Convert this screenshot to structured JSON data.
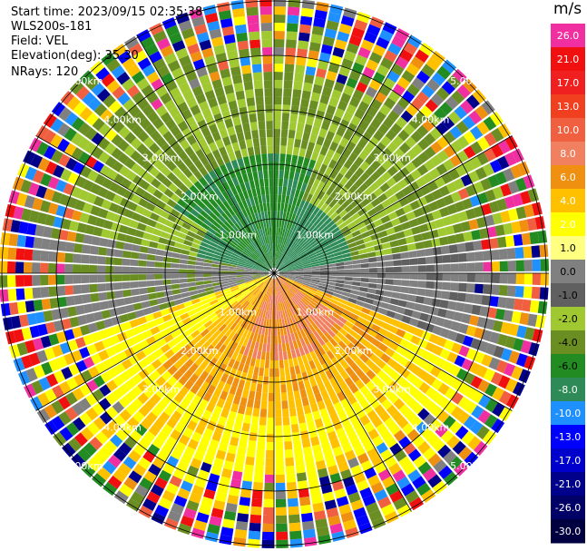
{
  "header": {
    "start_time": "Start time: 2023/09/15 02:35:38",
    "instrument": "WLS200s-181",
    "field": "Field: VEL",
    "elevation": "Elevation(deg): 35.30",
    "nrays": "NRays: 120"
  },
  "rings": [
    {
      "km": 1,
      "label": "1.00km"
    },
    {
      "km": 2,
      "label": "2.00km"
    },
    {
      "km": 3,
      "label": "3.00km"
    },
    {
      "km": 4,
      "label": "4.00km"
    },
    {
      "km": 5,
      "label": "5.00km"
    }
  ],
  "colorbar": {
    "unit": "m/s",
    "levels": [
      {
        "label": "26.0",
        "color": "#f030a0"
      },
      {
        "label": "21.0",
        "color": "#f01010"
      },
      {
        "label": "17.0",
        "color": "#f02020"
      },
      {
        "label": "13.0",
        "color": "#f04020"
      },
      {
        "label": "10.0",
        "color": "#f06040"
      },
      {
        "label": "8.0",
        "color": "#f08060"
      },
      {
        "label": "6.0",
        "color": "#f09010"
      },
      {
        "label": "4.0",
        "color": "#ffc000"
      },
      {
        "label": "2.0",
        "color": "#ffff00"
      },
      {
        "label": "1.0",
        "color": "#ffff80"
      },
      {
        "label": "0.0",
        "color": "#808080"
      },
      {
        "label": "-1.0",
        "color": "#606060"
      },
      {
        "label": "-2.0",
        "color": "#a0c830"
      },
      {
        "label": "-4.0",
        "color": "#6b8e23"
      },
      {
        "label": "-6.0",
        "color": "#228b22"
      },
      {
        "label": "-8.0",
        "color": "#2e8b57"
      },
      {
        "label": "-10.0",
        "color": "#1e90ff"
      },
      {
        "label": "-13.0",
        "color": "#0000ff"
      },
      {
        "label": "-17.0",
        "color": "#0000cd"
      },
      {
        "label": "-21.0",
        "color": "#00008b"
      },
      {
        "label": "-26.0",
        "color": "#000066"
      },
      {
        "label": "-30.0",
        "color": "#000040"
      }
    ]
  },
  "palette": {
    "bg": "#ffffff",
    "grid": "#000000",
    "noise": [
      "#f030a0",
      "#f01010",
      "#f06040",
      "#f09010",
      "#ffff00",
      "#808080",
      "#6b8e23",
      "#228b22",
      "#1e90ff",
      "#0000ff",
      "#00008b",
      "#ffc000"
    ]
  }
}
